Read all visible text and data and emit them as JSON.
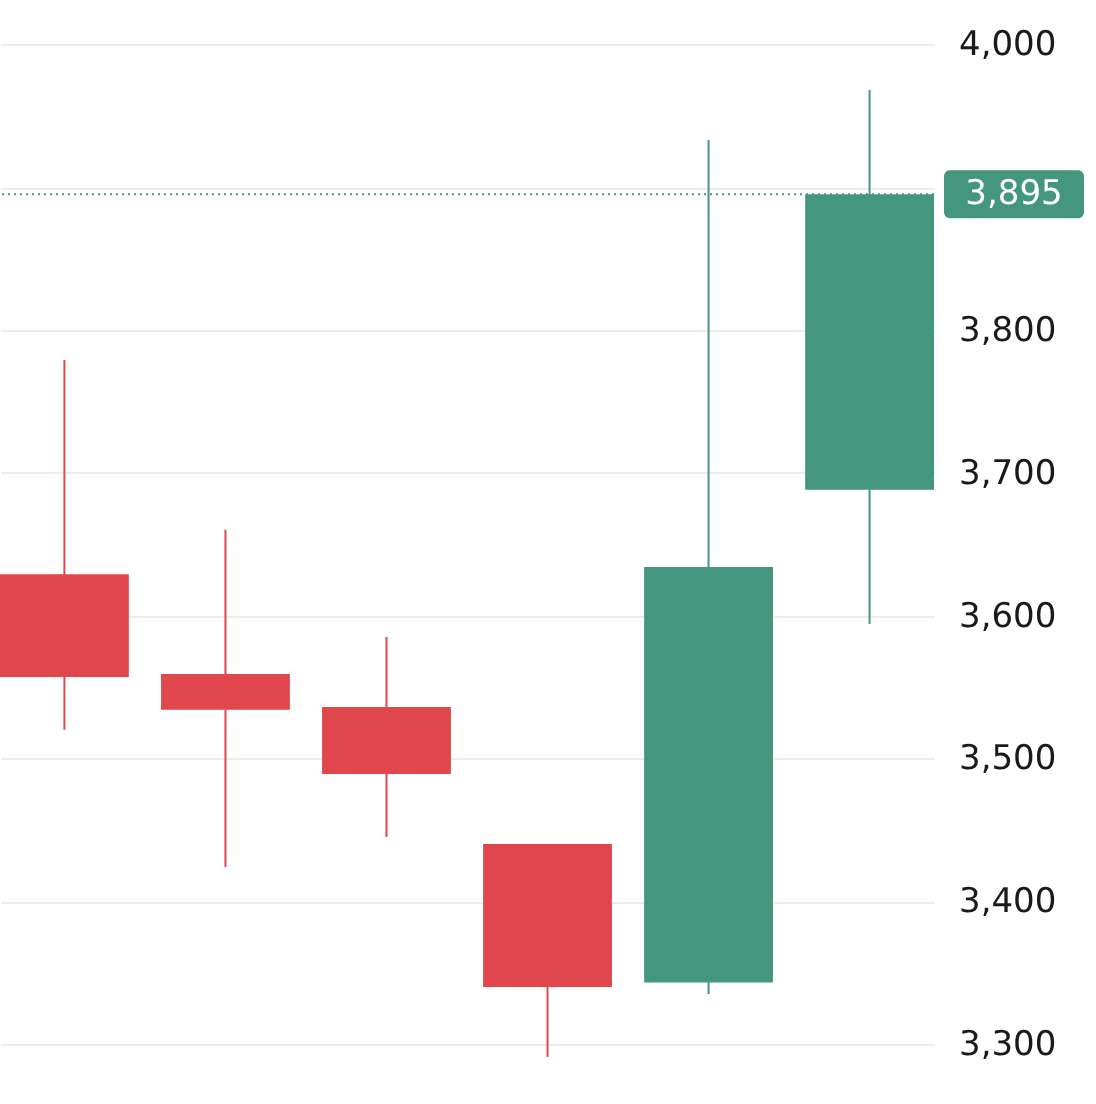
{
  "chart_data": {
    "type": "candlestick",
    "categories": [
      null,
      null,
      null,
      null,
      null,
      null
    ],
    "ohlc": [
      [
        3629,
        3779,
        3520,
        3557
      ],
      [
        3559,
        3660,
        3424,
        3534
      ],
      [
        3536,
        3585,
        3445,
        3489
      ],
      [
        3440,
        3440,
        3291,
        3340
      ],
      [
        3343,
        3933,
        3335,
        3634
      ],
      [
        3688,
        3968,
        3594,
        3895
      ]
    ],
    "colors": [
      "#e0474c",
      "#e0474c",
      "#e0474c",
      "#e0474c",
      "#44967e",
      "#44967e"
    ],
    "ylim": [
      3258,
      4031
    ],
    "yticks": [
      {
        "value": 3300,
        "label": "3,300"
      },
      {
        "value": 3400,
        "label": "3,400"
      },
      {
        "value": 3500,
        "label": "3,500"
      },
      {
        "value": 3600,
        "label": "3,600"
      },
      {
        "value": 3700,
        "label": "3,700"
      },
      {
        "value": 3800,
        "label": "3,800"
      },
      {
        "value": 3900,
        "label": null
      },
      {
        "value": 4000,
        "label": "4,000"
      }
    ],
    "ref_lines": [
      {
        "axis": "y",
        "value": 3895,
        "label": "3,895",
        "color": "#44967e",
        "line_style": "dotted"
      }
    ],
    "grid": "y",
    "tick_labels": "y"
  }
}
